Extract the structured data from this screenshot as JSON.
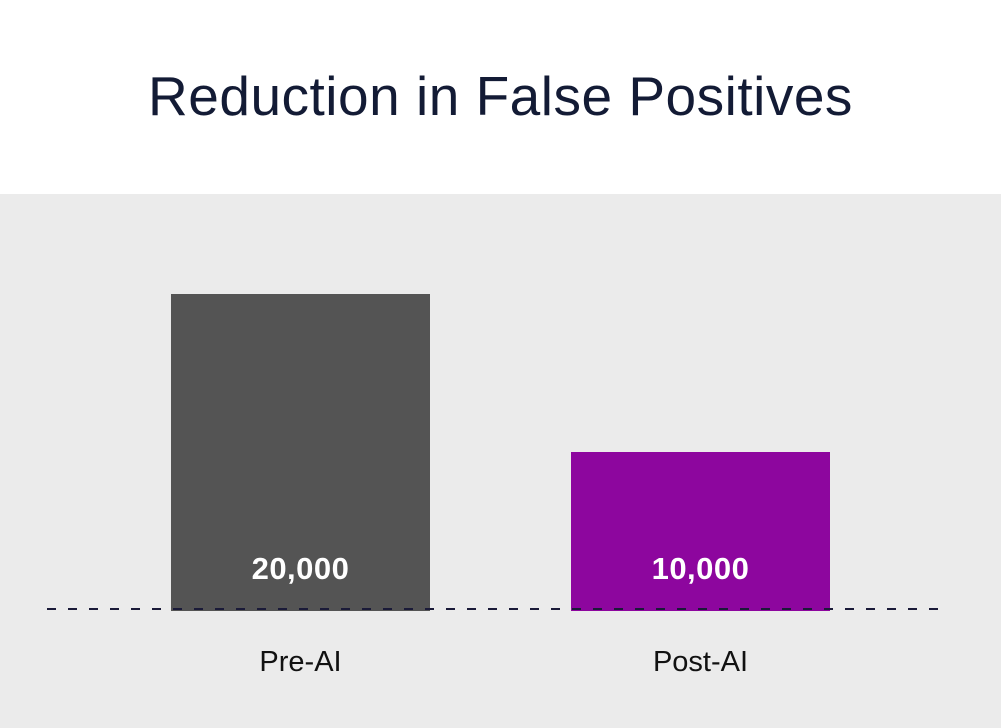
{
  "title": "Reduction in False Positives",
  "chart_data": {
    "type": "bar",
    "title": "Reduction in False Positives",
    "categories": [
      "Pre-AI",
      "Post-AI"
    ],
    "values": [
      20000,
      10000
    ],
    "value_labels": [
      "20,000",
      "10,000"
    ],
    "xlabel": "",
    "ylabel": "",
    "ylim": [
      0,
      20000
    ],
    "grid": false,
    "legend": false,
    "baseline_style": "dashed",
    "bar_colors": [
      "#545454",
      "#8d069e"
    ],
    "value_label_color": "#ffffff",
    "title_color": "#131b35",
    "category_label_color": "#111111",
    "baseline_color": "#1a1a38",
    "plot_background": "#ebebeb",
    "page_background": "#ffffff"
  }
}
